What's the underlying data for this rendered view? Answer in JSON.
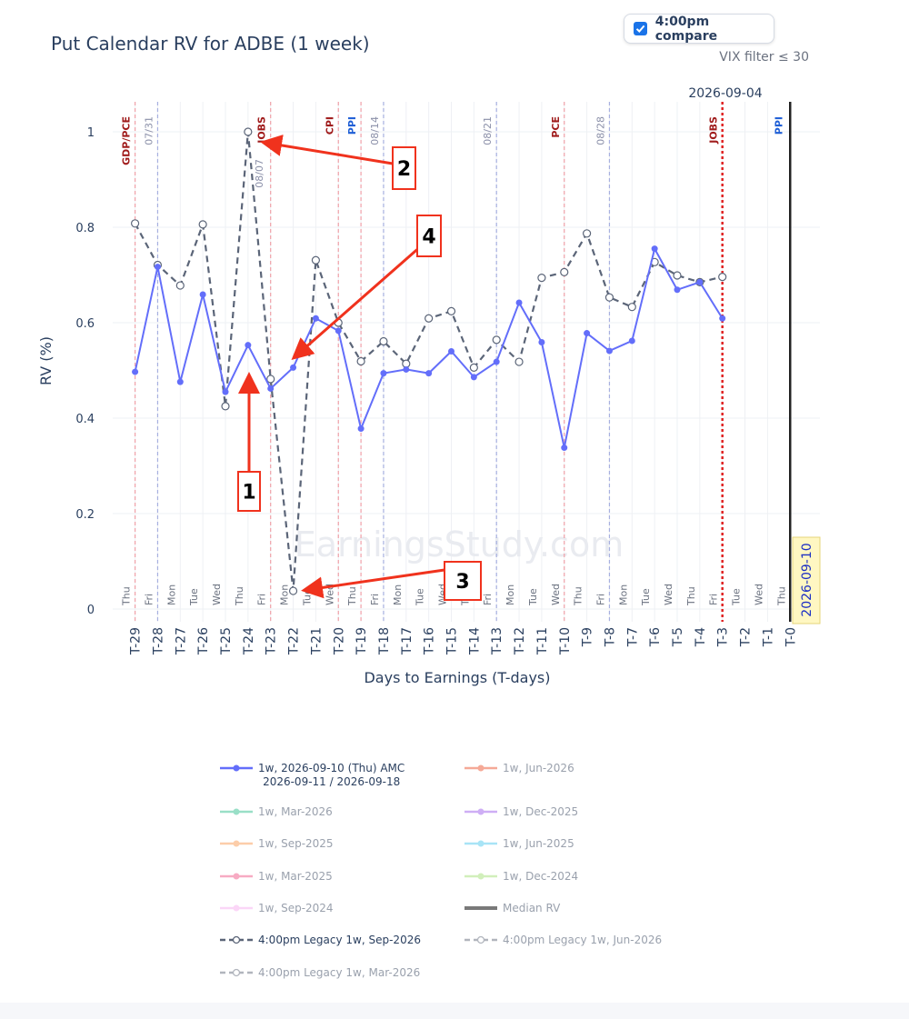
{
  "header": {
    "title": "Put Calendar RV for ADBE (1 week)",
    "compare_label": "4:00pm compare",
    "compare_checked": true,
    "vix_filter": "VIX filter ≤ 30"
  },
  "watermark": "EarningsStudy.com",
  "chart_data": {
    "type": "line",
    "title": "Put Calendar RV for ADBE (1 week)",
    "xlabel": "Days to Earnings (T-days)",
    "ylabel": "RV (%)",
    "ylim": [
      0,
      1.05
    ],
    "yticks": [
      "0",
      "0.2",
      "0.4",
      "0.6",
      "0.8",
      "1"
    ],
    "x": [
      -29,
      -28,
      -27,
      -26,
      -25,
      -24,
      -23,
      -22,
      -21,
      -20,
      -19,
      -18,
      -17,
      -16,
      -15,
      -14,
      -13,
      -12,
      -11,
      -10,
      -9,
      -8,
      -7,
      -6,
      -5,
      -4,
      -3,
      -2,
      -1,
      0
    ],
    "xticklabels": [
      "T-29",
      "T-28",
      "T-27",
      "T-26",
      "T-25",
      "T-24",
      "T-23",
      "T-22",
      "T-21",
      "T-20",
      "T-19",
      "T-18",
      "T-17",
      "T-16",
      "T-15",
      "T-14",
      "T-13",
      "T-12",
      "T-11",
      "T-10",
      "T-9",
      "T-8",
      "T-7",
      "T-6",
      "T-5",
      "T-4",
      "T-3",
      "T-2",
      "T-1",
      "T-0"
    ],
    "weekdays": [
      "Thu",
      "Fri",
      "Mon",
      "Tue",
      "Wed",
      "Thu",
      "Fri",
      "Mon",
      "Tue",
      "Wed",
      "Thu",
      "Fri",
      "Mon",
      "Tue",
      "Wed",
      "Thu",
      "Fri",
      "Mon",
      "Tue",
      "Wed",
      "Thu",
      "Fri",
      "Mon",
      "Tue",
      "Wed",
      "Thu",
      "Fri",
      "Tue",
      "Wed",
      "Thu"
    ],
    "series": [
      {
        "name": "1w, 2026-09-10 (Thu) AMC\n2026-09-11 / 2026-09-18",
        "color": "#636efa",
        "style": "solid-markers",
        "x": [
          -29,
          -28,
          -27,
          -26,
          -25,
          -24,
          -23,
          -22,
          -21,
          -20,
          -19,
          -18,
          -17,
          -16,
          -15,
          -14,
          -13,
          -12,
          -11,
          -10,
          -9,
          -8,
          -7,
          -6,
          -5,
          -4,
          -3
        ],
        "values": [
          0.497,
          0.717,
          0.476,
          0.659,
          0.455,
          0.553,
          0.462,
          0.506,
          0.609,
          0.583,
          0.378,
          0.494,
          0.502,
          0.494,
          0.54,
          0.486,
          0.518,
          0.642,
          0.559,
          0.338,
          0.578,
          0.541,
          0.562,
          0.755,
          0.669,
          0.685,
          0.609
        ]
      },
      {
        "name": "4:00pm Legacy 1w, Sep-2026",
        "color": "#5b6578",
        "style": "dashed-open-markers",
        "x": [
          -29,
          -28,
          -27,
          -26,
          -25,
          -24,
          -23,
          -22,
          -21,
          -20,
          -19,
          -18,
          -17,
          -16,
          -15,
          -14,
          -13,
          -12,
          -11,
          -10,
          -9,
          -8,
          -7,
          -6,
          -5,
          -4,
          -3
        ],
        "values": [
          0.808,
          0.721,
          0.678,
          0.806,
          0.425,
          1.0,
          0.482,
          0.038,
          0.731,
          0.6,
          0.519,
          0.561,
          0.514,
          0.609,
          0.624,
          0.506,
          0.564,
          0.518,
          0.694,
          0.706,
          0.787,
          0.653,
          0.633,
          0.727,
          0.699,
          0.685,
          0.696
        ]
      }
    ],
    "event_lines": [
      {
        "x": -29,
        "label": "GDP/PCE",
        "color": "#a01c1c",
        "dash": "pink"
      },
      {
        "x": -28,
        "label": "07/31",
        "color": "#8a8fa8",
        "dash": "blue"
      },
      {
        "x": -23,
        "label": "JOBS",
        "color": "#a01c1c",
        "dash": "pink"
      },
      {
        "x": -24,
        "label": "08/07",
        "color": "#8a8fa8",
        "dash": "none"
      },
      {
        "x": -20,
        "label": "CPI",
        "color": "#a01c1c",
        "dash": "pink"
      },
      {
        "x": -19,
        "label": "PPI",
        "color": "#1f5fd6",
        "dash": "pink"
      },
      {
        "x": -18,
        "label": "08/14",
        "color": "#8a8fa8",
        "dash": "blue"
      },
      {
        "x": -13,
        "label": "08/21",
        "color": "#8a8fa8",
        "dash": "blue"
      },
      {
        "x": -10,
        "label": "PCE",
        "color": "#a01c1c",
        "dash": "pink"
      },
      {
        "x": -8,
        "label": "08/28",
        "color": "#8a8fa8",
        "dash": "blue"
      },
      {
        "x": -3,
        "label": "JOBS",
        "color": "#a01c1c",
        "dash": "red-strong"
      },
      {
        "x": 0,
        "label": "PPI",
        "color": "#1f5fd6",
        "dash": "none"
      }
    ],
    "top_date_label": "2026-09-04",
    "earnings_label": "2026-09-10",
    "legend": [
      {
        "label": "1w, 2026-09-10 (Thu) AMC\n2026-09-11 / 2026-09-18",
        "color": "#636efa",
        "marker": "filled",
        "dim": false
      },
      {
        "label": "1w, Jun-2026",
        "color": "#f4a08c",
        "marker": "filled",
        "dim": true
      },
      {
        "label": "1w, Mar-2026",
        "color": "#8fdcc2",
        "marker": "filled",
        "dim": true
      },
      {
        "label": "1w, Dec-2025",
        "color": "#c9a6f5",
        "marker": "filled",
        "dim": true
      },
      {
        "label": "1w, Sep-2025",
        "color": "#fcc8a0",
        "marker": "filled",
        "dim": true
      },
      {
        "label": "1w, Jun-2025",
        "color": "#9fe2f6",
        "marker": "filled",
        "dim": true
      },
      {
        "label": "1w, Mar-2025",
        "color": "#f7a3bd",
        "marker": "filled",
        "dim": true
      },
      {
        "label": "1w, Dec-2024",
        "color": "#cdeeb4",
        "marker": "filled",
        "dim": true
      },
      {
        "label": "1w, Sep-2024",
        "color": "#fbd2f7",
        "marker": "filled",
        "dim": true
      },
      {
        "label": "Median RV",
        "color": "#6b6b6b",
        "marker": "thick",
        "dim": true
      },
      {
        "label": "4:00pm Legacy 1w, Sep-2026",
        "color": "#5b6578",
        "marker": "open",
        "dim": false
      },
      {
        "label": "4:00pm Legacy 1w, Jun-2026",
        "color": "#a9adb6",
        "marker": "open",
        "dim": true
      },
      {
        "label": "4:00pm Legacy 1w, Mar-2026",
        "color": "#a9adb6",
        "marker": "open",
        "dim": true
      }
    ]
  },
  "annotations": [
    {
      "number": "1"
    },
    {
      "number": "2"
    },
    {
      "number": "3"
    },
    {
      "number": "4"
    }
  ]
}
